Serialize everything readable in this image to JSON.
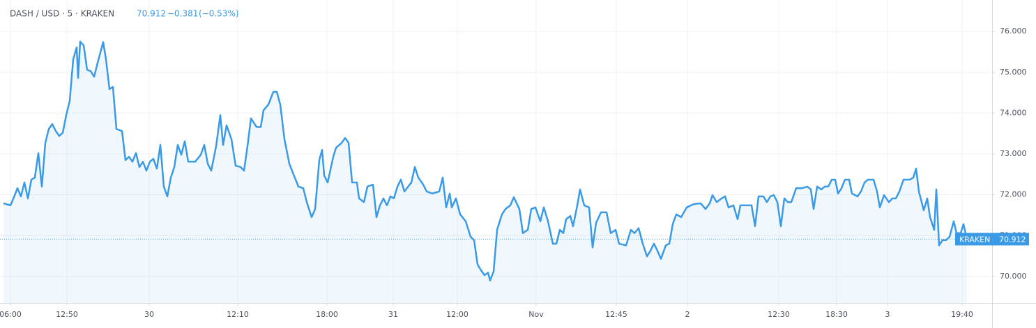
{
  "chart_data": {
    "type": "line",
    "title": "DASH / USD · 5 · KRAKEN",
    "price": 70.912,
    "change": "−0.381",
    "change_percent": "(−0.53%)",
    "price_tag": "KRAKEN",
    "grid": true,
    "xlim": [
      0,
      284.6
    ],
    "ylim": [
      69.35,
      76.77
    ],
    "xticks": [
      {
        "value": 3,
        "label": "06:00"
      },
      {
        "value": 19.2,
        "label": "12:50"
      },
      {
        "value": 42.8,
        "label": "30"
      },
      {
        "value": 68.2,
        "label": "12:10"
      },
      {
        "value": 93.8,
        "label": "18:00"
      },
      {
        "value": 112.8,
        "label": "31"
      },
      {
        "value": 131.2,
        "label": "12:00"
      },
      {
        "value": 153.8,
        "label": "Nov"
      },
      {
        "value": 176.8,
        "label": "12:45"
      },
      {
        "value": 197.2,
        "label": "2"
      },
      {
        "value": 223.4,
        "label": "12:30"
      },
      {
        "value": 240,
        "label": "18:30"
      },
      {
        "value": 254.6,
        "label": "3"
      },
      {
        "value": 276,
        "label": "19:40"
      }
    ],
    "yticks": [
      {
        "value": 70,
        "label": "70.000"
      },
      {
        "value": 71,
        "label": "71.000"
      },
      {
        "value": 72,
        "label": "72.000"
      },
      {
        "value": 73,
        "label": "73.000"
      },
      {
        "value": 74,
        "label": "74.000"
      },
      {
        "value": 75,
        "label": "75.000"
      },
      {
        "value": 76,
        "label": "76.000"
      }
    ],
    "x": [
      1,
      3,
      4,
      5,
      6,
      7,
      8,
      9,
      10,
      11,
      12,
      13,
      14,
      15,
      16,
      17,
      18,
      19,
      20,
      21,
      22,
      22.4,
      23,
      24,
      25,
      26,
      27,
      28,
      29.6,
      30.4,
      31.4,
      32.4,
      33.4,
      35,
      36,
      37,
      38,
      39,
      40,
      41,
      42,
      43,
      44,
      45,
      46,
      47,
      48,
      49,
      50,
      51,
      52,
      53,
      54,
      56,
      57.6,
      58.6,
      59.6,
      60.6,
      62,
      63.2,
      64,
      65,
      66.4,
      67.6,
      69,
      70,
      71,
      72,
      73.6,
      74.8,
      75.6,
      77,
      78.4,
      79.4,
      80.4,
      81.6,
      83,
      84,
      85.6,
      87,
      88,
      89.4,
      90.4,
      91.6,
      92.4,
      93,
      94,
      95.6,
      96.4,
      98,
      99,
      100,
      101,
      102.4,
      103,
      104.4,
      105.4,
      107,
      108,
      109,
      110,
      111,
      112,
      113,
      114,
      115,
      116,
      118,
      119,
      120,
      121.4,
      122.4,
      124,
      126,
      127,
      128,
      129,
      129.6,
      130.8,
      132,
      133.6,
      135,
      136,
      137,
      138,
      139,
      140,
      140.6,
      141.6,
      142.6,
      144,
      145,
      146.4,
      147.4,
      149,
      150,
      151.4,
      152.4,
      153.6,
      155,
      156,
      157.2,
      158.6,
      159.6,
      160.6,
      161.6,
      162.4,
      163.6,
      164.4,
      165.6,
      166.4,
      167.6,
      169,
      170,
      171,
      172.4,
      174,
      175.2,
      176.6,
      177.6,
      179.6,
      181,
      182,
      183.2,
      184.4,
      185.6,
      186.6,
      187.6,
      188.6,
      189.6,
      191,
      192,
      193,
      194,
      195.4,
      197,
      199,
      201,
      202.4,
      203.6,
      204.4,
      205.6,
      207,
      208,
      209,
      210.4,
      211.6,
      212.4,
      214,
      215.6,
      216.6,
      217.6,
      219,
      220,
      221,
      222,
      223,
      224,
      225,
      226,
      227,
      228.4,
      230,
      231.6,
      232.6,
      233.4,
      234.4,
      235.6,
      236.6,
      237.6,
      238.6,
      239.6,
      240.4,
      241.4,
      242.4,
      243.6,
      244.4,
      246,
      247,
      248,
      249,
      250.6,
      251.6,
      252.4,
      253.6,
      255,
      256,
      257,
      258,
      259.2,
      261,
      262,
      262.8,
      263.6,
      265,
      266,
      266.8,
      268,
      268.6,
      269.4,
      270.4,
      271.4,
      272.4,
      273.6,
      274.4,
      275.6,
      276.4,
      277.4
    ],
    "series": [
      {
        "name": "DASH / USD",
        "color": "#3a9ae6",
        "values": [
          71.79,
          71.74,
          71.94,
          72.16,
          71.96,
          72.3,
          71.91,
          72.37,
          72.42,
          73.02,
          72.2,
          73.27,
          73.61,
          73.73,
          73.56,
          73.44,
          73.52,
          73.95,
          74.3,
          75.32,
          75.61,
          74.86,
          75.75,
          75.66,
          75.06,
          75.03,
          74.89,
          75.23,
          75.74,
          75.32,
          74.59,
          74.64,
          73.61,
          73.56,
          72.85,
          72.93,
          72.81,
          73.02,
          72.68,
          72.81,
          72.59,
          72.81,
          72.88,
          72.64,
          73.22,
          72.2,
          71.96,
          72.42,
          72.68,
          73.22,
          72.98,
          73.31,
          72.81,
          72.81,
          72.98,
          73.22,
          72.76,
          72.59,
          73.19,
          73.95,
          73.22,
          73.7,
          73.36,
          72.71,
          72.68,
          72.59,
          73.19,
          73.87,
          73.66,
          73.66,
          74.07,
          74.21,
          74.52,
          74.52,
          74.21,
          73.36,
          72.76,
          72.54,
          72.2,
          72.16,
          71.82,
          71.45,
          71.65,
          72.85,
          73.1,
          72.47,
          72.3,
          72.93,
          73.15,
          73.27,
          73.39,
          73.27,
          72.3,
          72.3,
          71.91,
          71.82,
          72.2,
          72.25,
          71.45,
          71.74,
          71.91,
          71.74,
          71.96,
          71.91,
          72.2,
          72.37,
          72.08,
          72.3,
          72.68,
          72.42,
          72.25,
          72.08,
          72.03,
          72.08,
          72.42,
          71.69,
          72.03,
          71.69,
          71.91,
          71.52,
          71.35,
          70.97,
          70.89,
          70.29,
          70.15,
          70.03,
          70.09,
          69.9,
          70.12,
          71.14,
          71.52,
          71.65,
          71.74,
          71.94,
          71.65,
          71.06,
          71.14,
          71.65,
          71.69,
          71.35,
          71.69,
          71.35,
          70.8,
          70.8,
          71.14,
          71.06,
          71.4,
          71.48,
          71.23,
          71.74,
          72.13,
          71.74,
          71.69,
          70.71,
          71.31,
          71.57,
          71.57,
          71.06,
          71.14,
          70.8,
          70.76,
          71.14,
          71.06,
          71.18,
          70.8,
          70.49,
          70.63,
          70.8,
          70.63,
          70.43,
          70.76,
          70.8,
          71.28,
          71.52,
          71.45,
          71.69,
          71.77,
          71.79,
          71.65,
          71.79,
          71.99,
          71.82,
          71.91,
          71.96,
          71.69,
          71.74,
          71.4,
          71.74,
          71.74,
          71.74,
          71.23,
          71.96,
          71.96,
          71.82,
          71.96,
          71.99,
          71.82,
          71.23,
          71.91,
          71.82,
          71.82,
          72.16,
          72.16,
          72.2,
          72.13,
          71.65,
          72.2,
          72.13,
          72.2,
          72.2,
          72.37,
          72.37,
          72.03,
          72.16,
          72.37,
          72.37,
          72.03,
          71.96,
          72.08,
          72.3,
          72.37,
          72.37,
          72.08,
          71.69,
          71.99,
          71.82,
          71.91,
          71.91,
          72.08,
          72.37,
          72.37,
          72.42,
          72.64,
          72.08,
          71.62,
          71.91,
          71.45,
          71.14,
          72.13,
          70.76,
          70.89,
          70.89,
          70.97,
          71.35,
          71.06,
          71.06,
          71.28,
          70.912
        ]
      }
    ]
  }
}
